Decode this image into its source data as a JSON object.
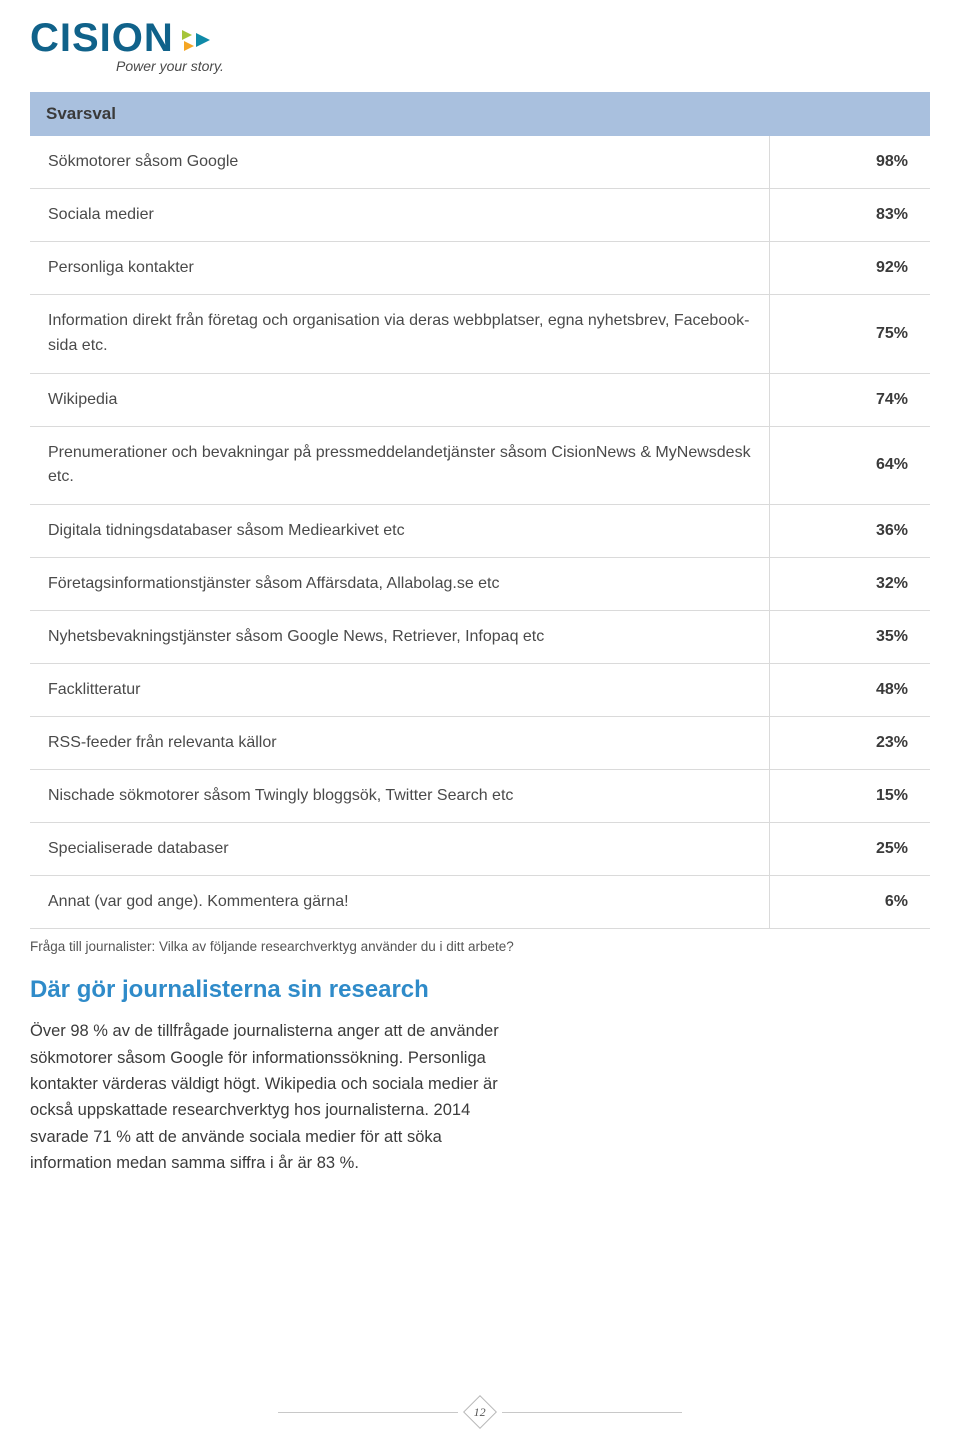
{
  "brand": {
    "name": "CISION",
    "tagline": "Power your story.",
    "logo_color": "#10628a",
    "mark_green": "#a6c539",
    "mark_orange": "#f5a623",
    "mark_teal": "#0f8aa8"
  },
  "table": {
    "header_label": "Svarsval",
    "header_value": "",
    "header_bg": "#a9c0de",
    "border_color": "#dadada",
    "rows": [
      {
        "label": "Sökmotorer såsom Google",
        "value": "98%"
      },
      {
        "label": "Sociala medier",
        "value": "83%"
      },
      {
        "label": "Personliga kontakter",
        "value": "92%"
      },
      {
        "label": "Information direkt från företag och organisation via deras webbplatser, egna nyhetsbrev, Facebook-sida etc.",
        "value": "75%"
      },
      {
        "label": "Wikipedia",
        "value": "74%"
      },
      {
        "label": "Prenumerationer och bevakningar på pressmeddelandetjänster såsom CisionNews & MyNewsdesk etc.",
        "value": "64%"
      },
      {
        "label": "Digitala tidningsdatabaser såsom Mediearkivet etc",
        "value": "36%"
      },
      {
        "label": "Företagsinformationstjänster såsom Affärsdata, Allabolag.se etc",
        "value": "32%"
      },
      {
        "label": "Nyhetsbevakningstjänster såsom Google News, Retriever, Infopaq etc",
        "value": "35%"
      },
      {
        "label": "Facklitteratur",
        "value": "48%"
      },
      {
        "label": "RSS-feeder från relevanta källor",
        "value": "23%"
      },
      {
        "label": "Nischade sökmotorer såsom Twingly bloggsök, Twitter Search etc",
        "value": "15%"
      },
      {
        "label": "Specialiserade databaser",
        "value": "25%"
      },
      {
        "label": "Annat (var god ange). Kommentera gärna!",
        "value": "6%"
      }
    ]
  },
  "footnote": "Fråga till journalister: Vilka av följande researchverktyg använder du i ditt arbete?",
  "section": {
    "heading": "Där gör journalisterna sin research",
    "heading_color": "#2f8bc9",
    "body": "Över 98 % av de tillfrågade journalisterna anger att de använder sökmotorer såsom Google för informa­tionssökning. Personliga kontakter värderas väldigt högt. Wikipedia och sociala medier är också up­pskattade researchverktyg hos journalisterna. 2014 svarade 71 % att de använde sociala medier för att söka information medan samma siffra i år är 83 %."
  },
  "page_number": "12"
}
